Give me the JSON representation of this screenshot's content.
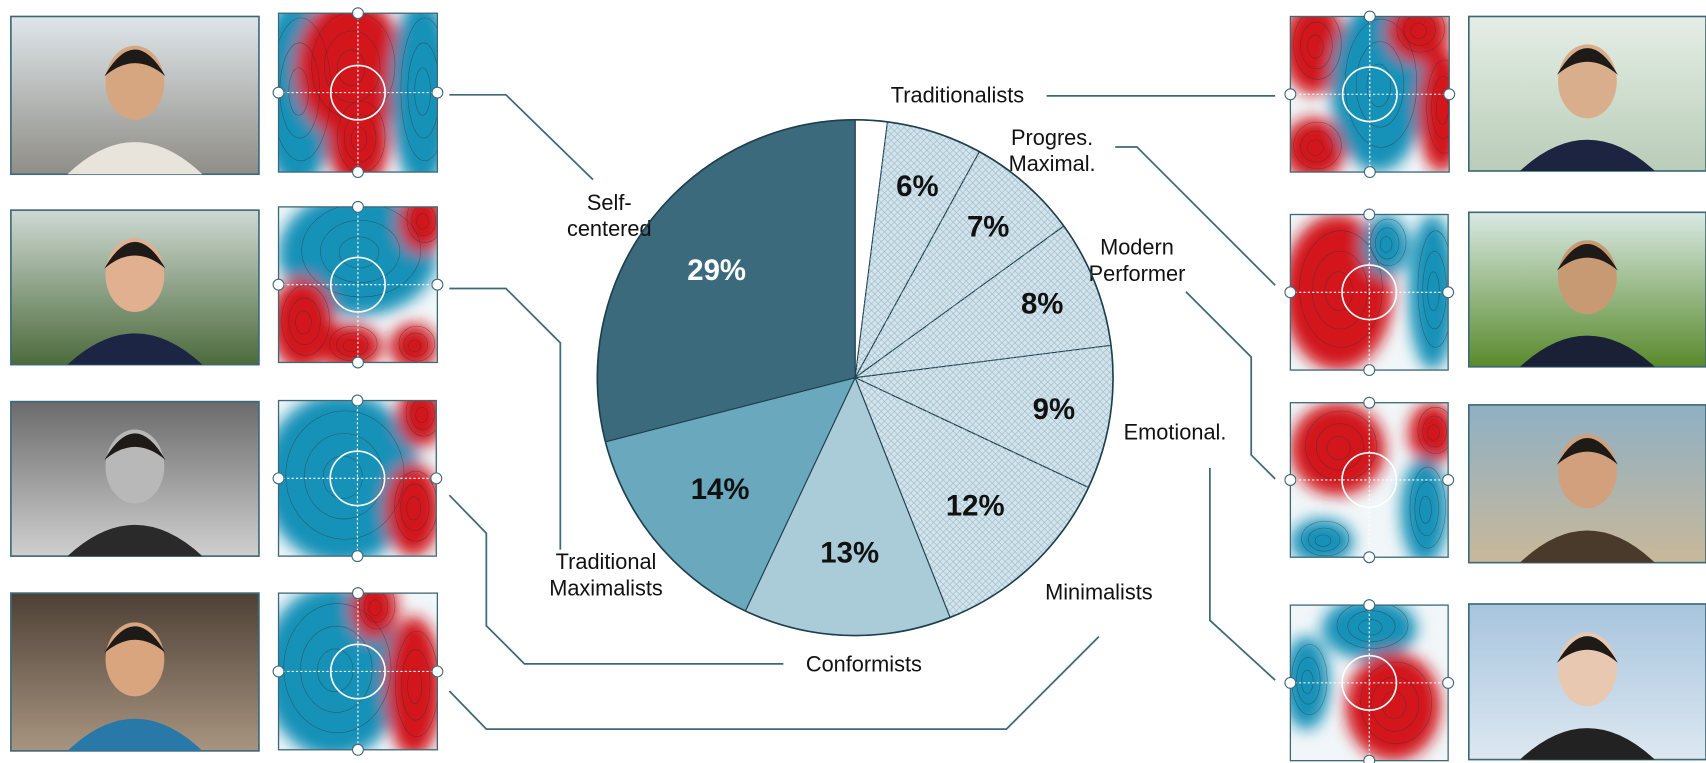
{
  "chart_data": {
    "type": "pie",
    "categories": [
      null,
      "Traditionalists",
      "Progres.\nMaximal.",
      "Modern\nPerformer",
      "Emotional.",
      "Minimalists",
      "Conformists",
      "Traditional\nMaximalists",
      "Self-\ncentered"
    ],
    "values": [
      2,
      6,
      7,
      8,
      9,
      12,
      13,
      14,
      29
    ],
    "value_labels": [
      null,
      "6%",
      "7%",
      "8%",
      "9%",
      "12%",
      "13%",
      "14%",
      "29%"
    ],
    "colors": [
      "#ffffff",
      "#d3e4ec",
      "#d3e4ec",
      "#d3e4ec",
      "#d3e4ec",
      "#d3e4ec",
      "#a9ccd8",
      "#6aa8be",
      "#3b6a7d"
    ],
    "start_angle": 0,
    "direction": "clockwise"
  }
}
